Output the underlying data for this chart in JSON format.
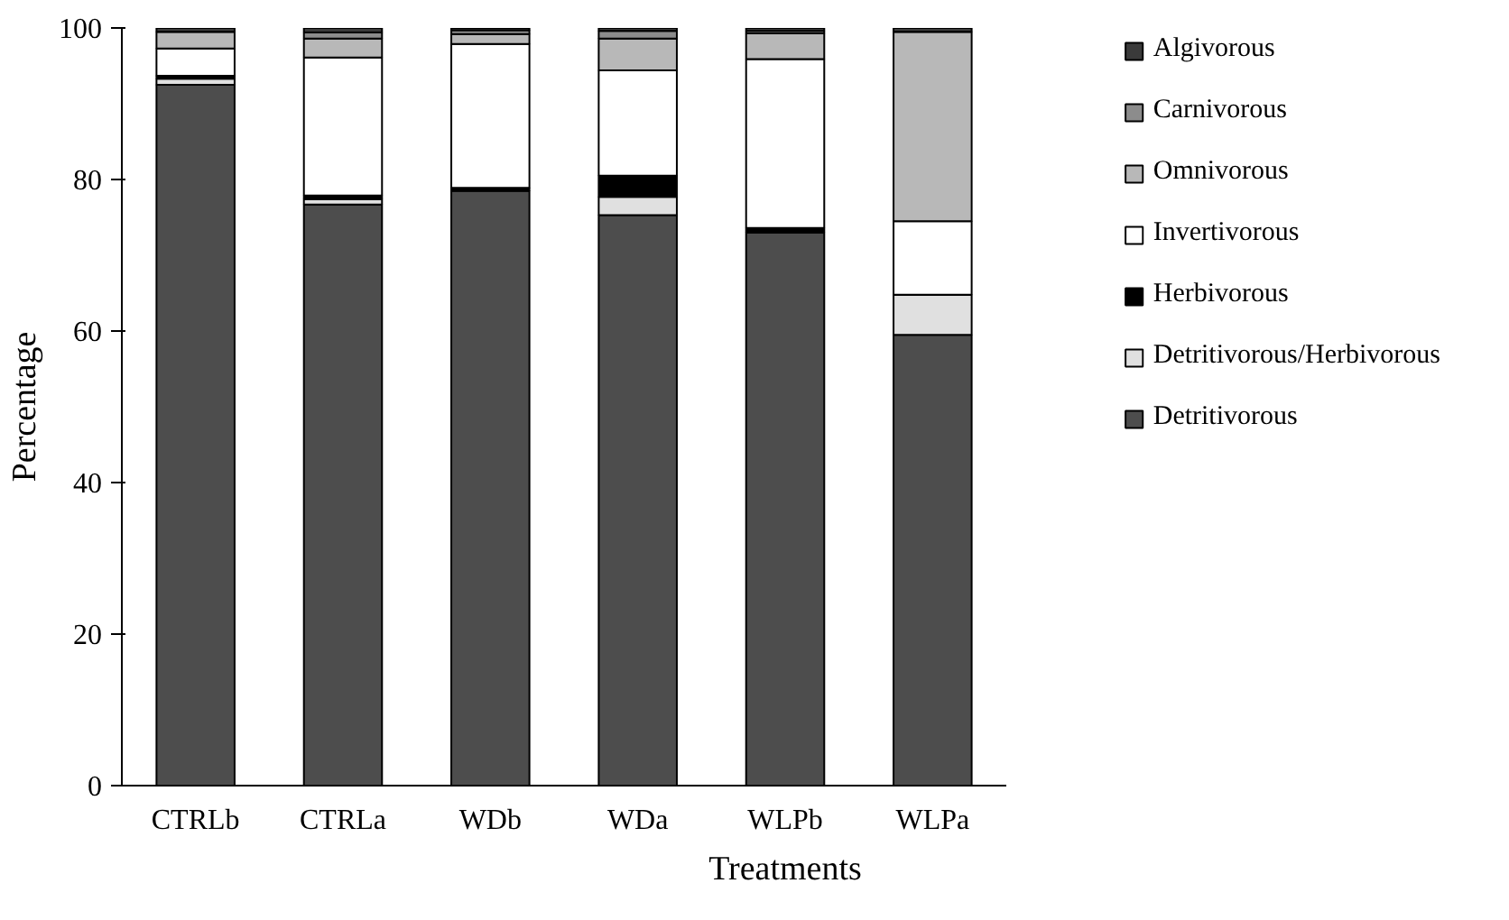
{
  "chart_data": {
    "type": "bar",
    "stacked": true,
    "xlabel": "Treatments",
    "ylabel": "Percentage",
    "categories": [
      "CTRLb",
      "CTRLa",
      "WDb",
      "WDa",
      "WLPb",
      "WLPa"
    ],
    "ylim": [
      0,
      100
    ],
    "yticks": [
      0,
      20,
      40,
      60,
      80,
      100
    ],
    "grid": false,
    "legend": "right",
    "series": [
      {
        "name": "Detritivorous",
        "color": "#4d4d4d",
        "values": [
          92.5,
          76.7,
          78.5,
          75.3,
          73.0,
          59.5
        ]
      },
      {
        "name": "Detritivorous/Herbivorous",
        "color": "#e0e0e0",
        "values": [
          0.8,
          0.7,
          0,
          2.4,
          0,
          5.3
        ]
      },
      {
        "name": "Herbivorous",
        "color": "#000000",
        "values": [
          0.4,
          0.5,
          0.4,
          2.8,
          0.6,
          0
        ]
      },
      {
        "name": "Invertivorous",
        "color": "#ffffff",
        "values": [
          3.6,
          18.2,
          19.0,
          13.9,
          22.3,
          9.7
        ]
      },
      {
        "name": "Omnivorous",
        "color": "#b8b8b8",
        "values": [
          2.2,
          2.5,
          1.3,
          4.2,
          3.4,
          25.0
        ]
      },
      {
        "name": "Carnivorous",
        "color": "#8c8c8c",
        "values": [
          null,
          0.8,
          0.5,
          1.0,
          0.3,
          null
        ]
      },
      {
        "name": "Algivorous",
        "color": "#3a3a3a",
        "values": [
          0.5,
          0.6,
          0.3,
          0.4,
          0.4,
          0.5
        ]
      }
    ]
  }
}
